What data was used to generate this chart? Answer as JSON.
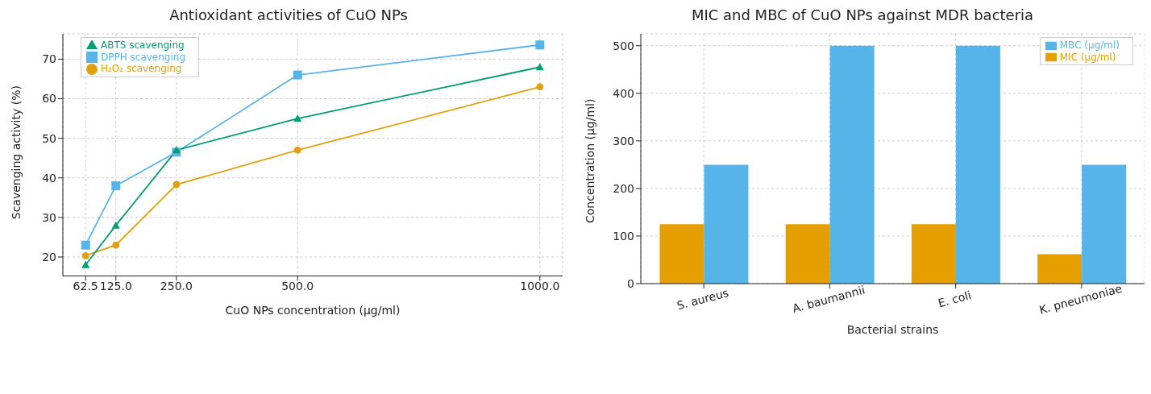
{
  "chart_data": [
    {
      "type": "line",
      "title": "Antioxidant activities of CuO NPs",
      "xlabel": "CuO NPs concentration (µg/ml)",
      "ylabel": "Scavenging activity (%)",
      "x": [
        62.5,
        125,
        250,
        500,
        1000
      ],
      "series": [
        {
          "name": "H₂O₂ scavenging",
          "color": "#e0a010",
          "marker": "circle",
          "values": [
            20.3,
            23,
            38.3,
            47,
            63
          ]
        },
        {
          "name": "DPPH scavenging",
          "color": "#56b4e9",
          "marker": "square",
          "values": [
            23,
            38,
            46.5,
            66,
            73.6
          ]
        },
        {
          "name": "ABTS scavenging",
          "color": "#009e73",
          "marker": "triangle",
          "values": [
            18,
            28,
            47,
            55,
            68
          ]
        }
      ],
      "xlim": [
        15.6,
        1046.9
      ],
      "xticks": [
        {
          "value": 62.5,
          "label": "62.5"
        },
        {
          "value": 125,
          "label": "125.0"
        },
        {
          "value": 250,
          "label": "250.0"
        },
        {
          "value": 500,
          "label": "500.0"
        },
        {
          "value": 1000,
          "label": "1000.0"
        }
      ],
      "ylim": [
        15.2,
        76.4
      ],
      "yticks": [
        20,
        30,
        40,
        50,
        60,
        70
      ],
      "grid": true,
      "legend": "top left",
      "line_style": "solid"
    },
    {
      "type": "bar",
      "title": "MIC and MBC of CuO NPs against MDR bacteria",
      "xlabel": "Bacterial strains",
      "ylabel": "Concentration (µg/ml)",
      "categories": [
        "S. aureus",
        "A. baumannii",
        "E. coli",
        "K. pneumoniae"
      ],
      "series": [
        {
          "name": "MIC (µg/ml)",
          "color": "#e69f00",
          "values": [
            125,
            125,
            125,
            62
          ]
        },
        {
          "name": "MBC (µg/ml)",
          "color": "#56b4e9",
          "values": [
            250,
            500,
            500,
            250
          ]
        }
      ],
      "ylim": [
        0,
        525
      ],
      "yticks": [
        0,
        100,
        200,
        300,
        400,
        500
      ],
      "grid": true,
      "legend": "top right"
    }
  ]
}
